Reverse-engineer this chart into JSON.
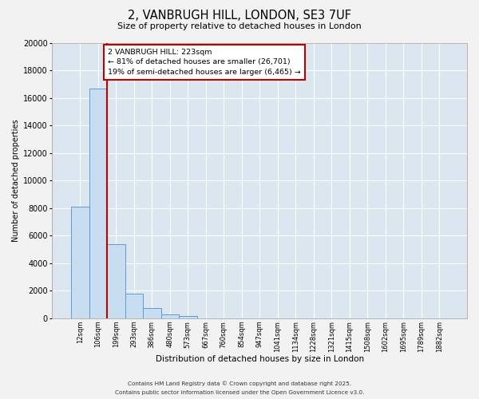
{
  "title": "2, VANBRUGH HILL, LONDON, SE3 7UF",
  "subtitle": "Size of property relative to detached houses in London",
  "xlabel": "Distribution of detached houses by size in London",
  "ylabel": "Number of detached properties",
  "bar_color": "#c9ddf0",
  "bar_edge_color": "#5b9bd5",
  "background_color": "#dce6f1",
  "fig_background": "#f2f2f2",
  "grid_color": "#ffffff",
  "annotation_box_color": "#ffffff",
  "annotation_box_edge": "#c00000",
  "vline_color": "#c00000",
  "categories": [
    "12sqm",
    "106sqm",
    "199sqm",
    "293sqm",
    "386sqm",
    "480sqm",
    "573sqm",
    "667sqm",
    "760sqm",
    "854sqm",
    "947sqm",
    "1041sqm",
    "1134sqm",
    "1228sqm",
    "1321sqm",
    "1415sqm",
    "1508sqm",
    "1602sqm",
    "1695sqm",
    "1789sqm",
    "1882sqm"
  ],
  "values": [
    8100,
    16700,
    5400,
    1800,
    750,
    300,
    170,
    0,
    0,
    0,
    0,
    0,
    0,
    0,
    0,
    0,
    0,
    0,
    0,
    0,
    0
  ],
  "ylim": [
    0,
    20000
  ],
  "yticks": [
    0,
    2000,
    4000,
    6000,
    8000,
    10000,
    12000,
    14000,
    16000,
    18000,
    20000
  ],
  "vline_x_index": 2,
  "annotation_line1": "2 VANBRUGH HILL: 223sqm",
  "annotation_line2": "← 81% of detached houses are smaller (26,701)",
  "annotation_line3": "19% of semi-detached houses are larger (6,465) →",
  "footnote1": "Contains HM Land Registry data © Crown copyright and database right 2025.",
  "footnote2": "Contains public sector information licensed under the Open Government Licence v3.0."
}
